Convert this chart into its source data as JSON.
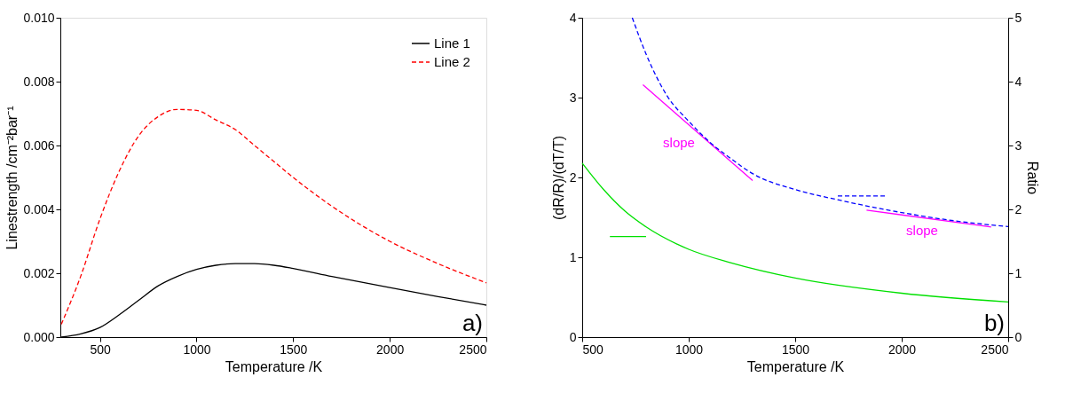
{
  "chart_data": [
    {
      "type": "line",
      "xlabel": "Temperature /K",
      "ylabel": "Linestrength /cm⁻²bar⁻¹",
      "xlim": [
        295,
        2500
      ],
      "xticks": [
        500,
        1000,
        1500,
        2000,
        2500
      ],
      "ylim": [
        0,
        0.01
      ],
      "yticks": [
        {
          "value": 0,
          "label": "0.000"
        },
        {
          "value": 0.002,
          "label": "0.002"
        },
        {
          "value": 0.004,
          "label": "0.004"
        },
        {
          "value": 0.006,
          "label": "0.006"
        },
        {
          "value": 0.008,
          "label": "0.008"
        },
        {
          "value": 0.01,
          "label": "0.010"
        }
      ],
      "legend": "top right",
      "grid": false,
      "annotations": [
        "a)"
      ],
      "series": [
        {
          "name": "Line 1",
          "color": "#000000",
          "line_style": "solid",
          "x": [
            300,
            400,
            500,
            600,
            700,
            800,
            900,
            1000,
            1100,
            1200,
            1300,
            1400,
            1500,
            1700,
            2000,
            2250,
            2500
          ],
          "values": [
            0,
            0.0001,
            0.0003,
            0.0007,
            0.00115,
            0.0016,
            0.0019,
            0.00212,
            0.00225,
            0.0023,
            0.0023,
            0.00225,
            0.00215,
            0.0019,
            0.00155,
            0.00127,
            0.001
          ]
        },
        {
          "name": "Line 2",
          "color": "#ff0000",
          "line_style": "dashed",
          "x": [
            300,
            400,
            500,
            600,
            700,
            800,
            900,
            1000,
            1100,
            1200,
            1300,
            1400,
            1500,
            1700,
            2000,
            2250,
            2500
          ],
          "values": [
            0.0004,
            0.0019,
            0.0037,
            0.0052,
            0.0063,
            0.0069,
            0.00713,
            0.0071,
            0.0068,
            0.0065,
            0.006,
            0.0055,
            0.005,
            0.0041,
            0.003,
            0.0023,
            0.0017
          ]
        }
      ]
    },
    {
      "type": "line",
      "xlabel": "Temperature /K",
      "ylabel": "(dR/R)/(dT/T)",
      "y2label": "Ratio",
      "xlim": [
        500,
        2500
      ],
      "xticks": [
        500,
        1000,
        1500,
        2000,
        2500
      ],
      "ylim": [
        0,
        4
      ],
      "yticks": [
        0,
        1,
        2,
        3,
        4
      ],
      "y2lim": [
        0,
        5
      ],
      "y2ticks": [
        0,
        1,
        2,
        3,
        4,
        5
      ],
      "legend": false,
      "grid": false,
      "annotations": [
        "b)",
        "slope",
        "slope"
      ],
      "series": [
        {
          "color": "#00e000",
          "line_style": "solid",
          "x": [
            500,
            600,
            700,
            800,
            1000,
            1200,
            1500,
            2000,
            2500
          ],
          "values": [
            2.18,
            1.85,
            1.58,
            1.38,
            1.1,
            0.93,
            0.74,
            0.55,
            0.44
          ]
        },
        {
          "color": "#00e000",
          "line_style": "solid",
          "x": [
            800,
            630
          ],
          "values": [
            1.26,
            1.26
          ]
        },
        {
          "color": "#0000ff",
          "line_style": "dashed",
          "axis": "y2",
          "x": [
            735,
            800,
            900,
            1000,
            1100,
            1200,
            1300,
            1500,
            1700,
            2000,
            2250,
            2500
          ],
          "values": [
            5,
            4.43,
            3.77,
            3.38,
            3.05,
            2.79,
            2.56,
            2.31,
            2.15,
            1.95,
            1.82,
            1.73
          ]
        },
        {
          "color": "#0000ff",
          "line_style": "dashed",
          "axis": "y2",
          "x": [
            1700,
            1925
          ],
          "values": [
            2.21,
            2.21
          ]
        },
        {
          "color": "#ff00ff",
          "line_style": "solid",
          "x": [
            785,
            1300
          ],
          "values": [
            3.16,
            1.96
          ]
        },
        {
          "color": "#ff00ff",
          "line_style": "solid",
          "x": [
            1835,
            2420
          ],
          "values": [
            1.59,
            1.38
          ]
        }
      ]
    }
  ]
}
